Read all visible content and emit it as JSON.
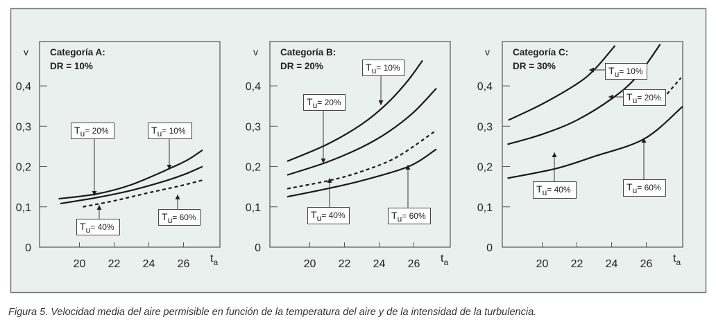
{
  "caption": "Figura 5. Velocidad media del aire permisible en función de la temperatura del aire y de la intensidad de la turbulencia.",
  "colors": {
    "frame_bg": "#e9f0ed",
    "frame_border": "#777777",
    "line": "#1a1a1a",
    "label_bg": "#ffffff"
  },
  "chart_data": [
    {
      "type": "line",
      "title": "Categoría A:",
      "subtitle": "DR = 10%",
      "xlabel": "t",
      "xlabel_sub": "a",
      "ylabel": "v",
      "xlim": [
        17.7,
        28.1
      ],
      "ylim": [
        0,
        0.51
      ],
      "xticks": [
        20,
        22,
        24,
        26
      ],
      "xtick_labels": [
        "20",
        "22",
        "24",
        "26"
      ],
      "yticks": [
        0,
        0.1,
        0.2,
        0.3,
        0.4
      ],
      "ytick_labels": [
        "0",
        "0,1",
        "0,2",
        "0,3",
        "0,4"
      ],
      "grid": false,
      "series": [
        {
          "name": "Tu = 10%",
          "style": "solid",
          "x": [
            18.8,
            21,
            23,
            25.3,
            26.3,
            27.1
          ],
          "y": [
            0.12,
            0.132,
            0.155,
            0.197,
            0.218,
            0.241
          ]
        },
        {
          "name": "Tu = 20%",
          "style": "solid",
          "x": [
            18.9,
            21,
            23,
            25,
            26.2,
            27.1
          ],
          "y": [
            0.108,
            0.123,
            0.141,
            0.165,
            0.183,
            0.2
          ]
        },
        {
          "name": "Tu = 40%",
          "style": "dashed",
          "x": [
            20.2,
            22,
            24,
            25.7,
            27.1
          ],
          "y": [
            0.1,
            0.115,
            0.135,
            0.151,
            0.166
          ]
        }
      ],
      "annotations": [
        {
          "var": "T",
          "sub": "u",
          "text": "= 20%"
        },
        {
          "var": "T",
          "sub": "u",
          "text": "= 10%"
        },
        {
          "var": "T",
          "sub": "u",
          "text": "= 40%"
        },
        {
          "var": "T",
          "sub": "u",
          "text": "= 60%"
        }
      ]
    },
    {
      "type": "line",
      "title": "Categoría B:",
      "subtitle": "DR = 20%",
      "xlabel": "t",
      "xlabel_sub": "a",
      "ylabel": "v",
      "xlim": [
        17.7,
        28.1
      ],
      "ylim": [
        0,
        0.51
      ],
      "xticks": [
        20,
        22,
        24,
        26
      ],
      "xtick_labels": [
        "20",
        "22",
        "24",
        "26"
      ],
      "yticks": [
        0,
        0.1,
        0.2,
        0.3,
        0.4
      ],
      "ytick_labels": [
        "0",
        "0,1",
        "0,2",
        "0,3",
        "0,4"
      ],
      "grid": false,
      "series": [
        {
          "name": "Tu = 10%",
          "style": "solid",
          "x": [
            18.7,
            21,
            23,
            24.4,
            25.6,
            26.5
          ],
          "y": [
            0.213,
            0.255,
            0.305,
            0.354,
            0.41,
            0.463
          ]
        },
        {
          "name": "Tu = 20%",
          "style": "solid",
          "x": [
            18.7,
            21,
            23,
            24.5,
            26,
            27.3
          ],
          "y": [
            0.179,
            0.211,
            0.248,
            0.285,
            0.335,
            0.394
          ]
        },
        {
          "name": "Tu = 40%",
          "style": "dashed",
          "x": [
            18.7,
            21.2,
            23,
            25,
            27.3
          ],
          "y": [
            0.145,
            0.166,
            0.188,
            0.223,
            0.29
          ]
        },
        {
          "name": "Tu = 60%",
          "style": "solid",
          "x": [
            18.7,
            21,
            23,
            25.7,
            27.3
          ],
          "y": [
            0.125,
            0.145,
            0.165,
            0.2,
            0.243
          ]
        }
      ],
      "annotations": [
        {
          "var": "T",
          "sub": "u",
          "text": "= 10%"
        },
        {
          "var": "T",
          "sub": "u",
          "text": "= 20%"
        },
        {
          "var": "T",
          "sub": "u",
          "text": "= 40%"
        },
        {
          "var": "T",
          "sub": "u",
          "text": "= 60%"
        }
      ]
    },
    {
      "type": "line",
      "title": "Categoría C:",
      "subtitle": "DR = 30%",
      "xlabel": "t",
      "xlabel_sub": "a",
      "ylabel": "v",
      "xlim": [
        17.7,
        28.1
      ],
      "ylim": [
        0,
        0.51
      ],
      "xticks": [
        20,
        22,
        24,
        26
      ],
      "xtick_labels": [
        "20",
        "22",
        "24",
        "26"
      ],
      "yticks": [
        0,
        0.1,
        0.2,
        0.3,
        0.4
      ],
      "ytick_labels": [
        "0",
        "0,1",
        "0,2",
        "0,3",
        "0,4"
      ],
      "grid": false,
      "series": [
        {
          "name": "Tu = 10%",
          "style": "solid",
          "x": [
            18.05,
            20,
            22,
            23,
            24.2
          ],
          "y": [
            0.315,
            0.355,
            0.405,
            0.44,
            0.5
          ]
        },
        {
          "name": "Tu = 20%",
          "style": "solid",
          "x": [
            18.0,
            20,
            22,
            24.1,
            25.5,
            26.8
          ],
          "y": [
            0.255,
            0.28,
            0.315,
            0.371,
            0.425,
            0.503
          ]
        },
        {
          "name": "Tu = 40%",
          "style": "dashed",
          "x": [
            27.2,
            28.0
          ],
          "y": [
            0.38,
            0.42
          ]
        },
        {
          "name": "Tu = 60%",
          "style": "solid",
          "x": [
            18.0,
            20.8,
            23,
            25.9,
            28.1
          ],
          "y": [
            0.171,
            0.195,
            0.225,
            0.269,
            0.349
          ]
        }
      ],
      "annotations": [
        {
          "var": "T",
          "sub": "u",
          "text": "= 10%"
        },
        {
          "var": "T",
          "sub": "u",
          "text": "= 20%"
        },
        {
          "var": "T",
          "sub": "u",
          "text": "= 40%"
        },
        {
          "var": "T",
          "sub": "u",
          "text": "= 60%"
        }
      ]
    }
  ]
}
